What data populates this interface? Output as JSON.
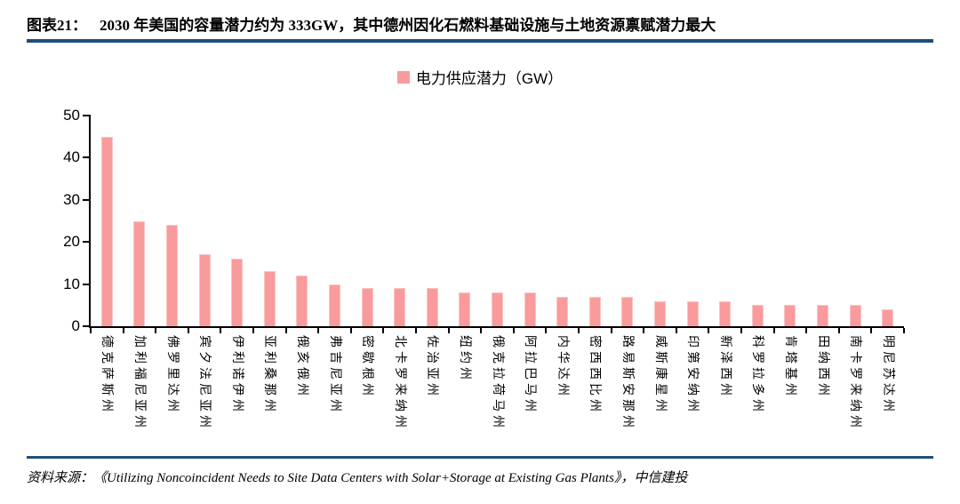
{
  "figure": {
    "label": "图表21：",
    "title": "2030 年美国的容量潜力约为 333GW，其中德州因化石燃料基础设施与土地资源禀赋潜力最大"
  },
  "legend": {
    "label": "电力供应潜力（GW）",
    "swatch_color": "#F99B9C"
  },
  "chart_data": {
    "type": "bar",
    "title": "",
    "xlabel": "",
    "ylabel": "",
    "series_name": "电力供应潜力（GW）",
    "categories": [
      "德克萨斯州",
      "加利福尼亚州",
      "佛罗里达州",
      "宾夕法尼亚州",
      "伊利诺伊州",
      "亚利桑那州",
      "俄亥俄州",
      "弗吉尼亚州",
      "密歇根州",
      "北卡罗来纳州",
      "佐治亚州",
      "纽约州",
      "俄克拉荷马州",
      "阿拉巴马州",
      "内华达州",
      "密西西比州",
      "路易斯安那州",
      "威斯康星州",
      "印第安纳州",
      "新泽西州",
      "科罗拉多州",
      "肯塔基州",
      "田纳西州",
      "南卡罗来纳州",
      "明尼苏达州"
    ],
    "values": [
      45,
      25,
      24,
      17,
      16,
      13,
      12,
      10,
      9,
      9,
      9,
      8,
      8,
      8,
      7,
      7,
      7,
      6,
      6,
      6,
      5,
      5,
      5,
      5,
      4
    ],
    "ylim": [
      0,
      50
    ],
    "yticks": [
      0,
      10,
      20,
      30,
      40,
      50
    ],
    "grid": false,
    "legend_position": "top-center",
    "bar_color": "#F99B9C",
    "x_label_rotation_deg": 90
  },
  "source": {
    "text": "资料来源：《Utilizing Noncoincident Needs to Site Data Centers with Solar+Storage at Existing Gas Plants》，中信建投"
  },
  "colors": {
    "accent_rule": "#1F4E79",
    "bar": "#F99B9C",
    "bar_border": "#FBC4C4",
    "axis": "#000000"
  }
}
